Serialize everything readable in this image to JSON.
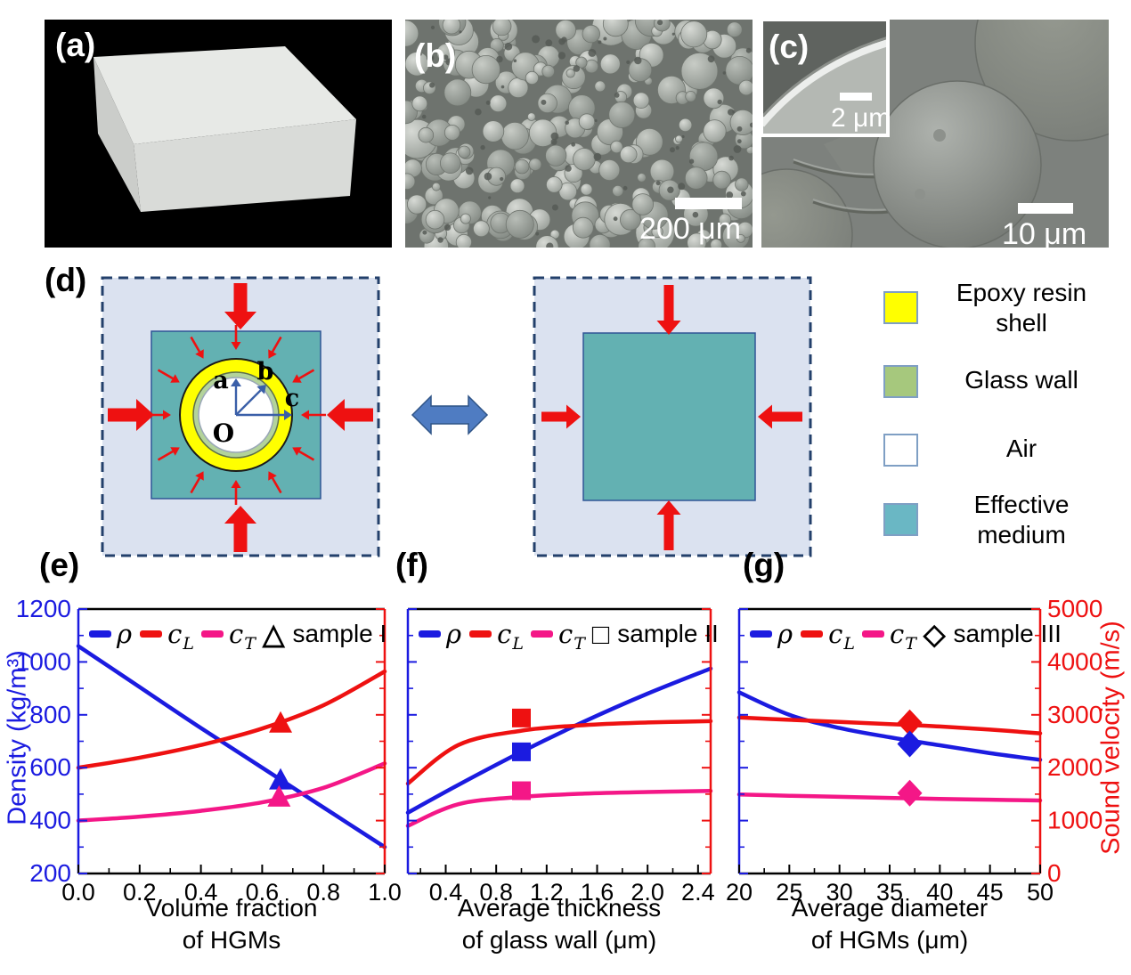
{
  "colors": {
    "curve_blue": "#1b1be0",
    "curve_red": "#ee1111",
    "curve_pink": "#f41787",
    "arrow_red": "#ee1111",
    "arrow_blue": "#4f7cc2",
    "radius_blue": "#3a5fa8",
    "diagram_bg": "#dbe2f0",
    "diagram_border": "#23406b",
    "effective_teal": "#63b1b2",
    "glass_green": "#b3d39a",
    "epoxy_yellow": "#ffff00",
    "legend_teal": "#6ab7c4",
    "legend_green": "#a6c87d",
    "legend_air": "#ffffff",
    "swatch_border": "#7f9fc4"
  },
  "panels": {
    "a": {
      "label": "(a)"
    },
    "b": {
      "label": "(b)",
      "scale_bar": "200 μm"
    },
    "c": {
      "label": "(c)",
      "scale_bar": "10 μm",
      "inset_scale_bar": "2 μm"
    },
    "d": {
      "label": "(d)",
      "radii": [
        "a",
        "b",
        "c"
      ],
      "origin": "O",
      "legend": [
        {
          "name": "epoxy",
          "label1": "Epoxy resin",
          "label2": "shell"
        },
        {
          "name": "glass",
          "label1": "Glass wall",
          "label2": ""
        },
        {
          "name": "air",
          "label1": "Air",
          "label2": ""
        },
        {
          "name": "effective",
          "label1": "Effective",
          "label2": "medium"
        }
      ]
    },
    "e": {
      "label": "(e)"
    },
    "f": {
      "label": "(f)"
    },
    "g": {
      "label": "(g)"
    }
  },
  "axes": {
    "left_title": "Density (kg/m³)",
    "right_title": "Sound velocity (m/s)",
    "left_lim": [
      200,
      1200
    ],
    "right_lim": [
      0,
      5000
    ],
    "left_ticks": [
      200,
      400,
      600,
      800,
      1000,
      1200
    ],
    "left_tick_labels": [
      "200",
      "400",
      "600",
      "800",
      "1000",
      "1200"
    ],
    "right_ticks": [
      0,
      1000,
      2000,
      3000,
      4000,
      5000
    ],
    "right_tick_labels": [
      "0",
      "1000",
      "2000",
      "3000",
      "4000",
      "5000"
    ],
    "left_minor": 100,
    "right_minor": 500
  },
  "legend_line_items": [
    {
      "main": "ρ",
      "sub": "",
      "color": "curve_blue"
    },
    {
      "main": "c",
      "sub": "L",
      "color": "curve_red"
    },
    {
      "main": "c",
      "sub": "T",
      "color": "curve_pink"
    }
  ],
  "marker_glyphs": {
    "triangle": "△",
    "square": "□",
    "diamond": "◇"
  },
  "chart_data": [
    {
      "type": "line",
      "panel": "e",
      "xlabel": [
        "Volume fraction",
        "of HGMs"
      ],
      "xlim": [
        0.0,
        1.0
      ],
      "x_ticks": [
        0.0,
        0.2,
        0.4,
        0.6,
        0.8,
        1.0
      ],
      "x_tick_labels": [
        "0.0",
        "0.2",
        "0.4",
        "0.6",
        "0.8",
        "1.0"
      ],
      "x_minor_step": 0.1,
      "show_left_tick_labels": true,
      "show_right_tick_labels": false,
      "grid": false,
      "legend_position": "top",
      "series": [
        {
          "name": "rho",
          "display": "ρ",
          "axis": "left",
          "color": "curve_blue",
          "x": [
            0.0,
            0.2,
            0.4,
            0.6,
            0.8,
            1.0
          ],
          "y": [
            1060,
            905,
            750,
            600,
            450,
            300
          ]
        },
        {
          "name": "cL",
          "display": "c_L",
          "axis": "right",
          "color": "curve_red",
          "x": [
            0.0,
            0.2,
            0.4,
            0.6,
            0.8,
            1.0
          ],
          "y": [
            2000,
            2190,
            2430,
            2740,
            3180,
            3820
          ]
        },
        {
          "name": "cT",
          "display": "c_T",
          "axis": "right",
          "color": "curve_pink",
          "x": [
            0.0,
            0.2,
            0.4,
            0.6,
            0.8,
            1.0
          ],
          "y": [
            1000,
            1075,
            1185,
            1345,
            1620,
            2080
          ]
        }
      ],
      "sample_label": "sample I",
      "marker_shape": "triangle",
      "sample_points": [
        {
          "series": "cL",
          "axis": "right",
          "x": 0.66,
          "y": 2850,
          "color": "curve_red"
        },
        {
          "series": "rho",
          "axis": "left",
          "x": 0.66,
          "y": 555,
          "color": "curve_blue"
        },
        {
          "series": "cT",
          "axis": "right",
          "x": 0.655,
          "y": 1450,
          "color": "curve_pink"
        }
      ]
    },
    {
      "type": "line",
      "panel": "f",
      "xlabel": [
        "Average thickness",
        "of glass wall (μm)"
      ],
      "xlim": [
        0.1,
        2.5
      ],
      "x_ticks": [
        0.4,
        0.8,
        1.2,
        1.6,
        2.0,
        2.4
      ],
      "x_tick_labels": [
        "0.4",
        "0.8",
        "1.2",
        "1.6",
        "2.0",
        "2.4"
      ],
      "x_minor_step": 0.2,
      "show_left_tick_labels": false,
      "show_right_tick_labels": false,
      "grid": false,
      "legend_position": "top",
      "series": [
        {
          "name": "rho",
          "display": "ρ",
          "axis": "left",
          "color": "curve_blue",
          "x": [
            0.1,
            0.5,
            1.0,
            1.5,
            2.0,
            2.5
          ],
          "y": [
            430,
            535,
            660,
            775,
            880,
            975
          ]
        },
        {
          "name": "cL",
          "display": "c_L",
          "axis": "right",
          "color": "curve_red",
          "x": [
            0.1,
            0.5,
            1.0,
            1.5,
            2.0,
            2.5
          ],
          "y": [
            1700,
            2430,
            2700,
            2805,
            2855,
            2880
          ]
        },
        {
          "name": "cT",
          "display": "c_T",
          "axis": "right",
          "color": "curve_pink",
          "x": [
            0.1,
            0.5,
            1.0,
            1.5,
            2.0,
            2.5
          ],
          "y": [
            900,
            1310,
            1450,
            1510,
            1540,
            1560
          ]
        }
      ],
      "sample_label": "sample II",
      "marker_shape": "square",
      "sample_points": [
        {
          "series": "cL",
          "axis": "right",
          "x": 1.0,
          "y": 2940,
          "color": "curve_red"
        },
        {
          "series": "rho",
          "axis": "left",
          "x": 1.0,
          "y": 660,
          "color": "curve_blue"
        },
        {
          "series": "cT",
          "axis": "right",
          "x": 1.0,
          "y": 1565,
          "color": "curve_pink"
        }
      ]
    },
    {
      "type": "line",
      "panel": "g",
      "xlabel": [
        "Average diameter",
        "of HGMs (μm)"
      ],
      "xlim": [
        20,
        50
      ],
      "x_ticks": [
        20,
        25,
        30,
        35,
        40,
        45,
        50
      ],
      "x_tick_labels": [
        "20",
        "25",
        "30",
        "35",
        "40",
        "45",
        "50"
      ],
      "x_minor_step": 2.5,
      "show_left_tick_labels": false,
      "show_right_tick_labels": true,
      "grid": false,
      "legend_position": "top",
      "series": [
        {
          "name": "rho",
          "display": "ρ",
          "axis": "left",
          "color": "curve_blue",
          "x": [
            20,
            25,
            30,
            35,
            40,
            45,
            50
          ],
          "y": [
            885,
            800,
            750,
            715,
            685,
            655,
            630
          ]
        },
        {
          "name": "cL",
          "display": "c_L",
          "axis": "right",
          "color": "curve_red",
          "x": [
            20,
            25,
            30,
            35,
            40,
            45,
            50
          ],
          "y": [
            2950,
            2905,
            2865,
            2825,
            2780,
            2720,
            2650
          ]
        },
        {
          "name": "cT",
          "display": "c_T",
          "axis": "right",
          "color": "curve_pink",
          "x": [
            20,
            25,
            30,
            35,
            40,
            45,
            50
          ],
          "y": [
            1495,
            1470,
            1450,
            1430,
            1410,
            1395,
            1380
          ]
        }
      ],
      "sample_label": "sample III",
      "marker_shape": "diamond",
      "sample_points": [
        {
          "series": "cL",
          "axis": "right",
          "x": 37,
          "y": 2850,
          "color": "curve_red"
        },
        {
          "series": "rho",
          "axis": "left",
          "x": 37,
          "y": 690,
          "color": "curve_blue"
        },
        {
          "series": "cT",
          "axis": "right",
          "x": 37,
          "y": 1520,
          "color": "curve_pink"
        }
      ]
    }
  ]
}
